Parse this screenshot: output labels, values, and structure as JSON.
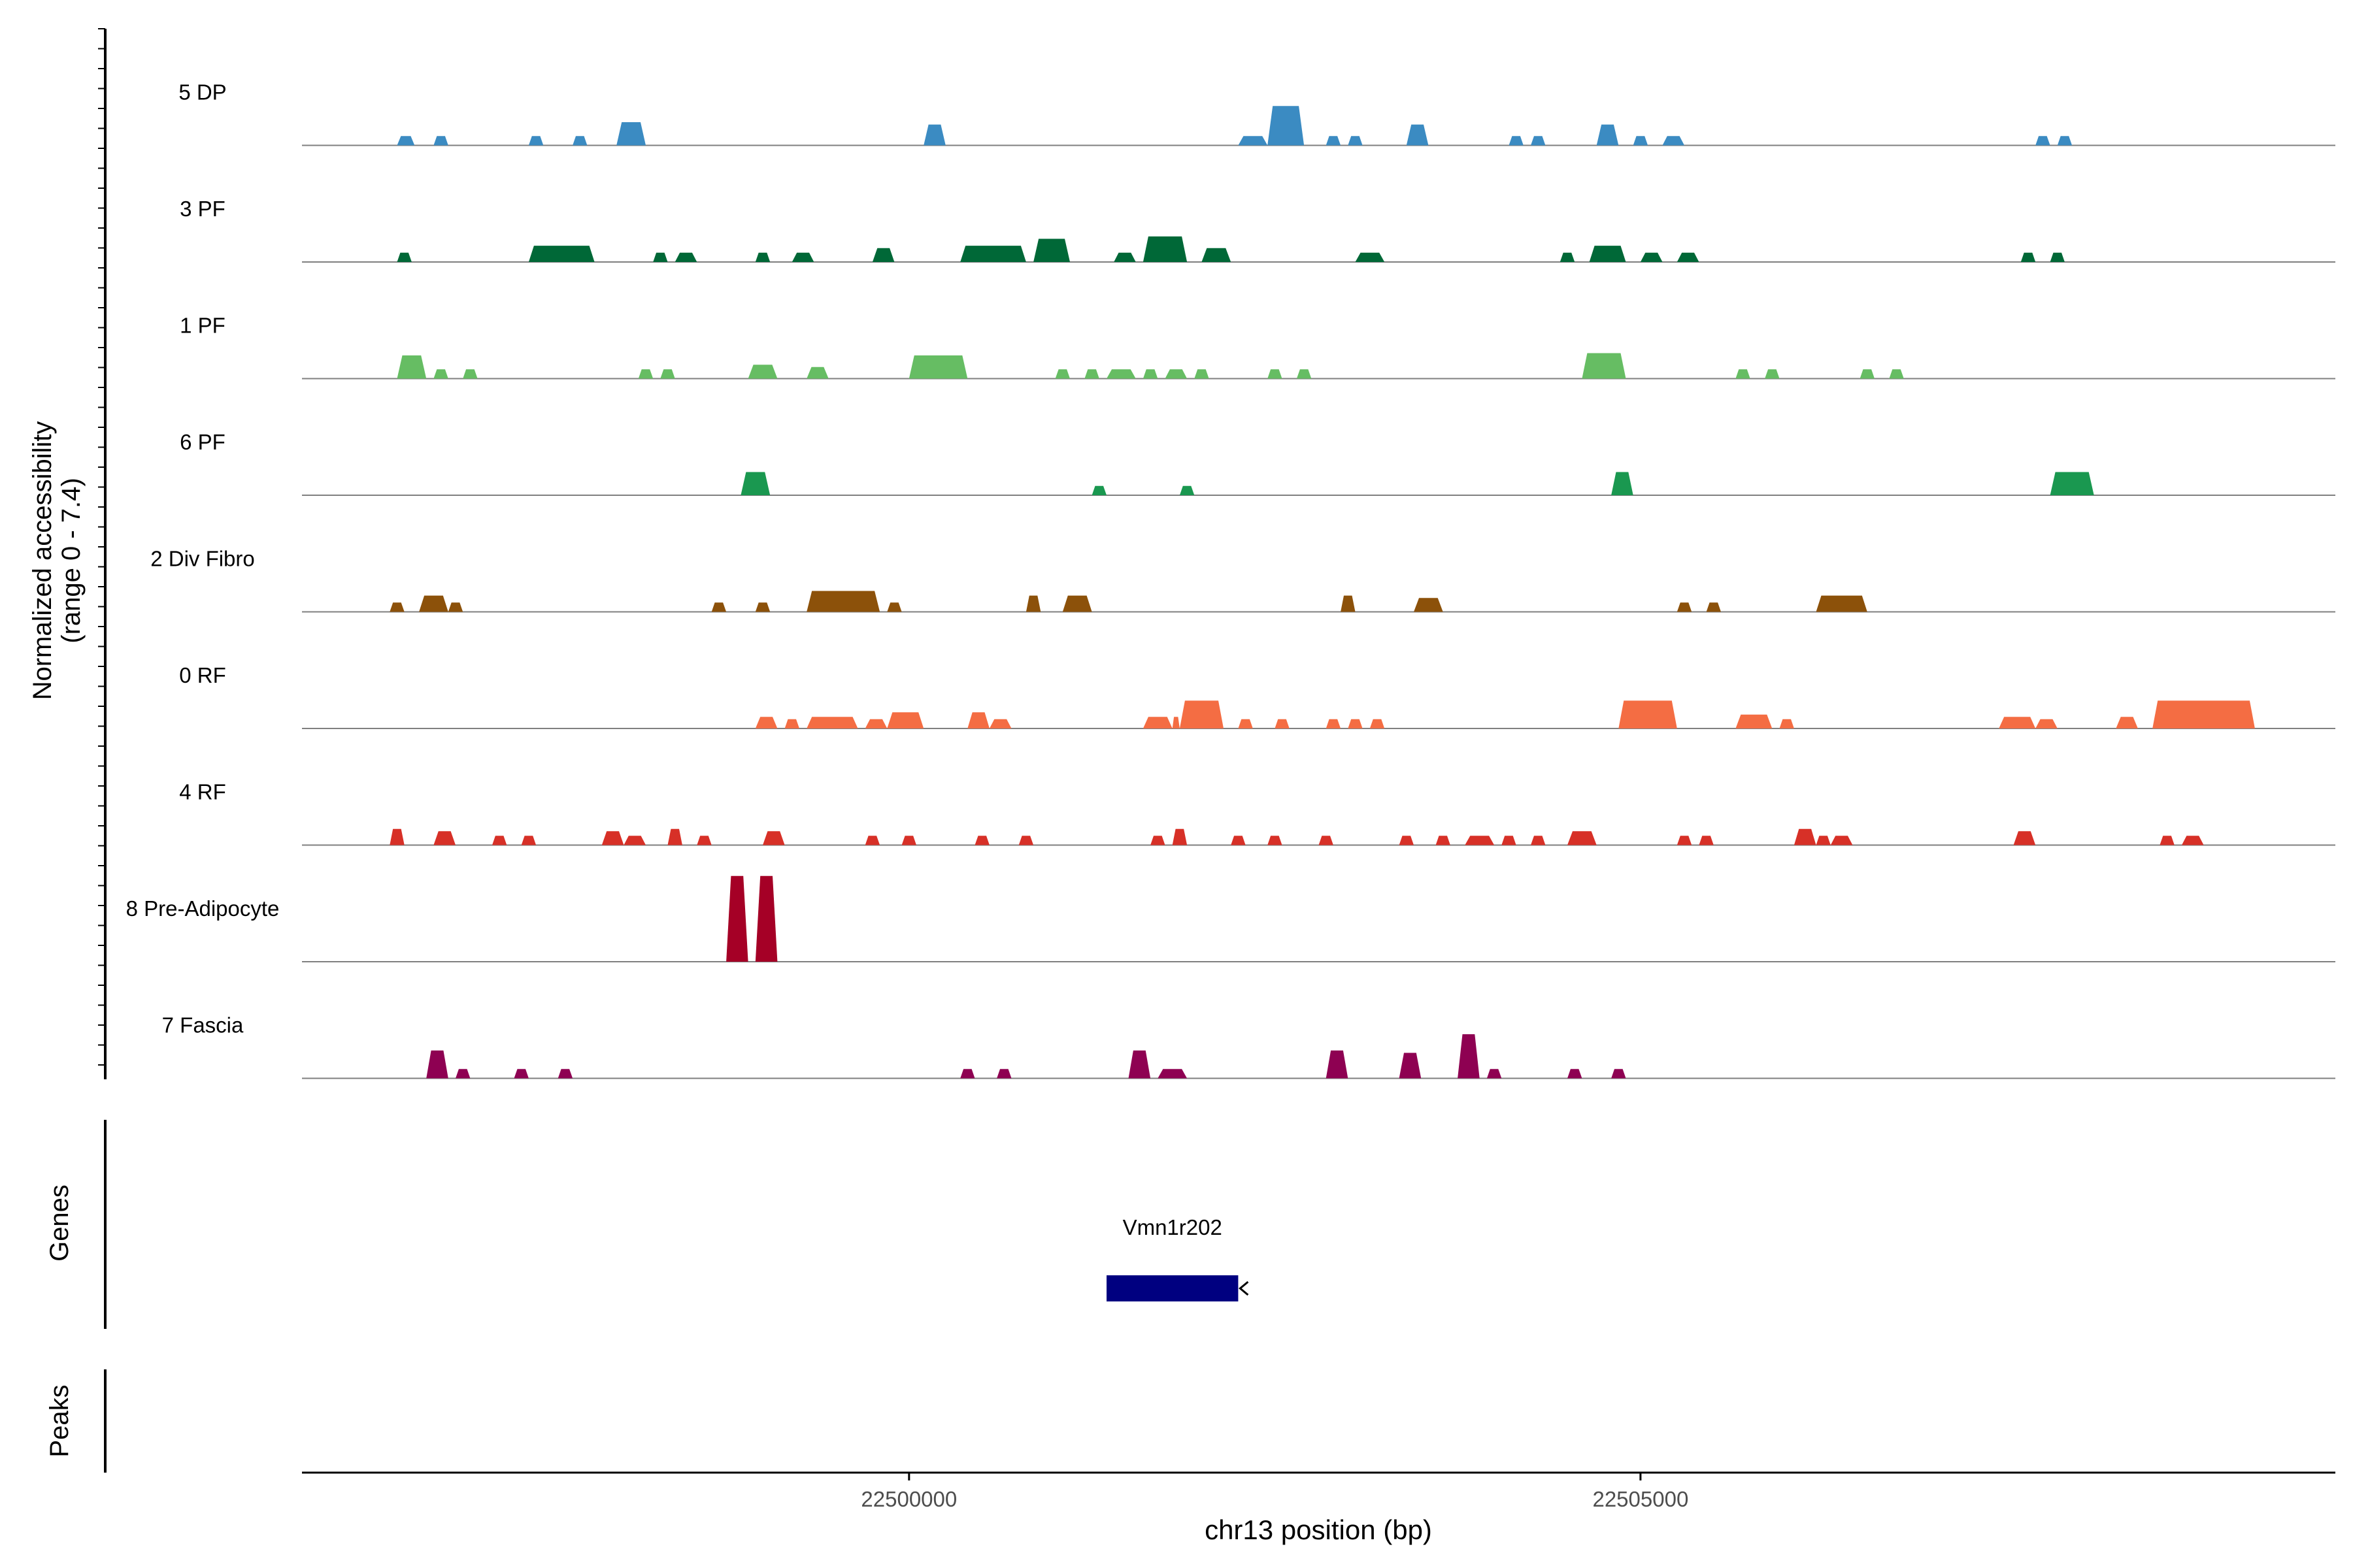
{
  "chart_data": {
    "type": "area",
    "title": "",
    "ylabel_line1": "Normalized accessibility",
    "ylabel_line2": "(range 0 - 7.4)",
    "xlabel": "chr13 position (bp)",
    "genes_label": "Genes",
    "peaks_label": "Peaks",
    "chromosome": "chr13",
    "y_range": [
      0,
      7.4
    ],
    "xlim": [
      22495850,
      22509750
    ],
    "x_ticks": [
      22500000,
      22505000
    ],
    "x_tick_labels": [
      "22500000",
      "22505000"
    ],
    "grid": false,
    "legend": "none",
    "colors": {
      "5 DP": "#3B8BC2",
      "3 PF": "#006837",
      "1 PF": "#66BD63",
      "6 PF": "#1A9850",
      "2 Div Fibro": "#8C510A",
      "0 RF": "#F46D43",
      "4 RF": "#D73027",
      "8 Pre-Adipocyte": "#A50026",
      "7 Fascia": "#8E0152",
      "gene": "#000080",
      "axis": "#000000",
      "baseline": "#7F7F7F"
    },
    "series": [
      {
        "name": "5 DP",
        "peaks": [
          [
            22496500,
            22496620,
            0.2
          ],
          [
            22496750,
            22496850,
            0.2
          ],
          [
            22497400,
            22497500,
            0.2
          ],
          [
            22497700,
            22497800,
            0.2
          ],
          [
            22498000,
            22498200,
            0.5
          ],
          [
            22500100,
            22500250,
            0.45
          ],
          [
            22502250,
            22502450,
            0.2
          ],
          [
            22502450,
            22502700,
            0.85
          ],
          [
            22502850,
            22502950,
            0.2
          ],
          [
            22503000,
            22503100,
            0.2
          ],
          [
            22503400,
            22503550,
            0.45
          ],
          [
            22504100,
            22504200,
            0.2
          ],
          [
            22504250,
            22504350,
            0.2
          ],
          [
            22504700,
            22504850,
            0.45
          ],
          [
            22504950,
            22505050,
            0.2
          ],
          [
            22505150,
            22505300,
            0.2
          ],
          [
            22507700,
            22507800,
            0.2
          ],
          [
            22507850,
            22507950,
            0.2
          ]
        ]
      },
      {
        "name": "3 PF",
        "peaks": [
          [
            22496500,
            22496600,
            0.2
          ],
          [
            22497400,
            22497850,
            0.35
          ],
          [
            22498250,
            22498350,
            0.2
          ],
          [
            22498400,
            22498550,
            0.2
          ],
          [
            22498950,
            22499050,
            0.2
          ],
          [
            22499200,
            22499350,
            0.2
          ],
          [
            22499750,
            22499900,
            0.3
          ],
          [
            22500350,
            22500800,
            0.35
          ],
          [
            22500850,
            22501100,
            0.5
          ],
          [
            22501400,
            22501550,
            0.2
          ],
          [
            22501600,
            22501900,
            0.55
          ],
          [
            22502000,
            22502200,
            0.3
          ],
          [
            22503050,
            22503250,
            0.2
          ],
          [
            22504450,
            22504550,
            0.2
          ],
          [
            22504650,
            22504900,
            0.35
          ],
          [
            22505000,
            22505150,
            0.2
          ],
          [
            22505250,
            22505400,
            0.2
          ],
          [
            22507600,
            22507700,
            0.2
          ],
          [
            22507800,
            22507900,
            0.2
          ]
        ]
      },
      {
        "name": "1 PF",
        "peaks": [
          [
            22496500,
            22496700,
            0.5
          ],
          [
            22496750,
            22496850,
            0.2
          ],
          [
            22496950,
            22497050,
            0.2
          ],
          [
            22498150,
            22498250,
            0.2
          ],
          [
            22498300,
            22498400,
            0.2
          ],
          [
            22498900,
            22499100,
            0.3
          ],
          [
            22499300,
            22499450,
            0.25
          ],
          [
            22500000,
            22500400,
            0.5
          ],
          [
            22501000,
            22501100,
            0.2
          ],
          [
            22501200,
            22501300,
            0.2
          ],
          [
            22501350,
            22501550,
            0.2
          ],
          [
            22501600,
            22501700,
            0.2
          ],
          [
            22501750,
            22501900,
            0.2
          ],
          [
            22501950,
            22502050,
            0.2
          ],
          [
            22502450,
            22502550,
            0.2
          ],
          [
            22502650,
            22502750,
            0.2
          ],
          [
            22504600,
            22504900,
            0.55
          ],
          [
            22505650,
            22505750,
            0.2
          ],
          [
            22505850,
            22505950,
            0.2
          ],
          [
            22506500,
            22506600,
            0.2
          ],
          [
            22506700,
            22506800,
            0.2
          ]
        ]
      },
      {
        "name": "6 PF",
        "peaks": [
          [
            22498850,
            22499050,
            0.5
          ],
          [
            22501250,
            22501350,
            0.2
          ],
          [
            22501850,
            22501950,
            0.2
          ],
          [
            22504800,
            22504950,
            0.5
          ],
          [
            22507800,
            22508100,
            0.5
          ]
        ]
      },
      {
        "name": "2 Div Fibro",
        "peaks": [
          [
            22496450,
            22496550,
            0.2
          ],
          [
            22496650,
            22496850,
            0.35
          ],
          [
            22496850,
            22496950,
            0.2
          ],
          [
            22498650,
            22498750,
            0.2
          ],
          [
            22498950,
            22499050,
            0.2
          ],
          [
            22499300,
            22499800,
            0.45
          ],
          [
            22499850,
            22499950,
            0.2
          ],
          [
            22500800,
            22500900,
            0.35
          ],
          [
            22501050,
            22501250,
            0.35
          ],
          [
            22502950,
            22503050,
            0.35
          ],
          [
            22503450,
            22503650,
            0.3
          ],
          [
            22505250,
            22505350,
            0.2
          ],
          [
            22505450,
            22505550,
            0.2
          ],
          [
            22506200,
            22506550,
            0.35
          ]
        ]
      },
      {
        "name": "0 RF",
        "peaks": [
          [
            22498950,
            22499100,
            0.25
          ],
          [
            22499150,
            22499250,
            0.2
          ],
          [
            22499300,
            22499650,
            0.25
          ],
          [
            22499700,
            22499850,
            0.2
          ],
          [
            22499850,
            22500100,
            0.35
          ],
          [
            22500400,
            22500550,
            0.35
          ],
          [
            22500550,
            22500700,
            0.2
          ],
          [
            22501600,
            22501800,
            0.25
          ],
          [
            22501800,
            22501850,
            0.25
          ],
          [
            22501850,
            22502150,
            0.6
          ],
          [
            22502250,
            22502350,
            0.2
          ],
          [
            22502500,
            22502600,
            0.2
          ],
          [
            22502850,
            22502950,
            0.2
          ],
          [
            22503000,
            22503100,
            0.2
          ],
          [
            22503150,
            22503250,
            0.2
          ],
          [
            22504850,
            22505250,
            0.6
          ],
          [
            22505650,
            22505900,
            0.3
          ],
          [
            22505950,
            22506050,
            0.2
          ],
          [
            22507450,
            22507700,
            0.25
          ],
          [
            22507700,
            22507850,
            0.2
          ],
          [
            22508250,
            22508400,
            0.25
          ],
          [
            22508500,
            22509200,
            0.6
          ]
        ]
      },
      {
        "name": "4 RF",
        "peaks": [
          [
            22496450,
            22496550,
            0.35
          ],
          [
            22496750,
            22496900,
            0.3
          ],
          [
            22497150,
            22497250,
            0.2
          ],
          [
            22497350,
            22497450,
            0.2
          ],
          [
            22497900,
            22498050,
            0.3
          ],
          [
            22498050,
            22498200,
            0.2
          ],
          [
            22498350,
            22498450,
            0.35
          ],
          [
            22498550,
            22498650,
            0.2
          ],
          [
            22499000,
            22499150,
            0.3
          ],
          [
            22499700,
            22499800,
            0.2
          ],
          [
            22499950,
            22500050,
            0.2
          ],
          [
            22500450,
            22500550,
            0.2
          ],
          [
            22500750,
            22500850,
            0.2
          ],
          [
            22501650,
            22501750,
            0.2
          ],
          [
            22501800,
            22501900,
            0.35
          ],
          [
            22502200,
            22502300,
            0.2
          ],
          [
            22502450,
            22502550,
            0.2
          ],
          [
            22502800,
            22502900,
            0.2
          ],
          [
            22503350,
            22503450,
            0.2
          ],
          [
            22503600,
            22503700,
            0.2
          ],
          [
            22503800,
            22504000,
            0.2
          ],
          [
            22504050,
            22504150,
            0.2
          ],
          [
            22504250,
            22504350,
            0.2
          ],
          [
            22504500,
            22504700,
            0.3
          ],
          [
            22505250,
            22505350,
            0.2
          ],
          [
            22505400,
            22505500,
            0.2
          ],
          [
            22506050,
            22506200,
            0.35
          ],
          [
            22506200,
            22506300,
            0.2
          ],
          [
            22506300,
            22506450,
            0.2
          ],
          [
            22507550,
            22507700,
            0.3
          ],
          [
            22508550,
            22508650,
            0.2
          ],
          [
            22508700,
            22508850,
            0.2
          ]
        ]
      },
      {
        "name": "8 Pre-Adipocyte",
        "peaks": [
          [
            22498750,
            22498900,
            1.85
          ],
          [
            22498950,
            22499100,
            1.85
          ]
        ]
      },
      {
        "name": "7 Fascia",
        "peaks": [
          [
            22496700,
            22496850,
            0.6
          ],
          [
            22496900,
            22497000,
            0.2
          ],
          [
            22497300,
            22497400,
            0.2
          ],
          [
            22497600,
            22497700,
            0.2
          ],
          [
            22500350,
            22500450,
            0.2
          ],
          [
            22500600,
            22500700,
            0.2
          ],
          [
            22501500,
            22501650,
            0.6
          ],
          [
            22501700,
            22501900,
            0.2
          ],
          [
            22502850,
            22503000,
            0.6
          ],
          [
            22503350,
            22503500,
            0.55
          ],
          [
            22503750,
            22503900,
            0.95
          ],
          [
            22503950,
            22504050,
            0.2
          ],
          [
            22504500,
            22504600,
            0.2
          ],
          [
            22504800,
            22504900,
            0.2
          ]
        ]
      }
    ],
    "genes": [
      {
        "name": "Vmn1r202",
        "start": 22501350,
        "end": 22502250,
        "strand": "-"
      }
    ],
    "peaks_track": []
  }
}
